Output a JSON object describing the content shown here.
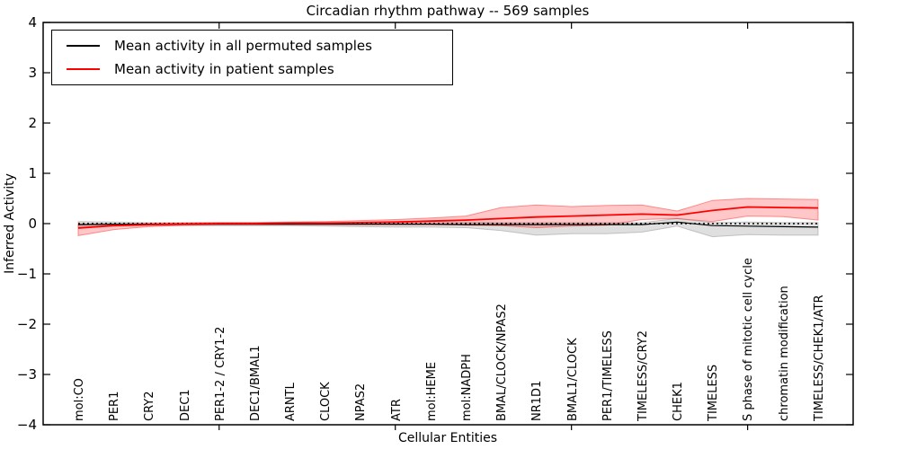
{
  "title": "Circadian rhythm pathway -- 569 samples",
  "legend": {
    "items": [
      {
        "label": "Mean activity in all permuted samples",
        "color": "#000000"
      },
      {
        "label": "Mean activity in patient samples",
        "color": "#ff0000"
      }
    ]
  },
  "chart_data": {
    "type": "line",
    "title": "Circadian rhythm pathway -- 569 samples",
    "xlabel": "Cellular Entities",
    "ylabel": "Inferred Activity",
    "ylim": [
      -4,
      4
    ],
    "y_tick_labels": [
      "4",
      "3",
      "2",
      "1",
      "0",
      "−1",
      "−2",
      "−3",
      "−4"
    ],
    "grid": false,
    "legend_position": "upper left",
    "zero_reference_line": 0,
    "categories": [
      "mol:CO",
      "PER1",
      "CRY2",
      "DEC1",
      "PER1-2 / CRY1-2",
      "DEC1/BMAL1",
      "ARNTL",
      "CLOCK",
      "NPAS2",
      "ATR",
      "mol:HEME",
      "mol:NADPH",
      "BMAL/CLOCK/NPAS2",
      "NR1D1",
      "BMAL1/CLOCK",
      "PER1/TIMELESS",
      "TIMELESS/CRY2",
      "CHEK1",
      "TIMELESS",
      "S phase of mitotic cell cycle",
      "chromatin modification",
      "TIMELESS/CHEK1/ATR"
    ],
    "series": [
      {
        "name": "Mean activity in all permuted samples",
        "color": "#000000",
        "band_fill": "rgba(110,110,110,0.22)",
        "band_edge": "rgba(110,110,110,0.35)",
        "values": [
          -0.02,
          -0.01,
          -0.01,
          -0.01,
          -0.01,
          -0.01,
          -0.01,
          -0.01,
          -0.01,
          -0.01,
          -0.01,
          -0.02,
          -0.02,
          -0.02,
          -0.02,
          -0.02,
          -0.02,
          0.03,
          -0.04,
          -0.05,
          -0.06,
          -0.07
        ],
        "band_upper": [
          0.04,
          0.03,
          0.02,
          0.02,
          0.02,
          0.02,
          0.02,
          0.02,
          0.02,
          0.03,
          0.03,
          0.03,
          0.02,
          0.02,
          0.02,
          0.02,
          0.02,
          0.1,
          0.02,
          0.03,
          0.02,
          0.02
        ],
        "band_lower": [
          -0.07,
          -0.05,
          -0.04,
          -0.04,
          -0.04,
          -0.04,
          -0.04,
          -0.05,
          -0.06,
          -0.07,
          -0.07,
          -0.08,
          -0.14,
          -0.23,
          -0.2,
          -0.2,
          -0.17,
          -0.05,
          -0.26,
          -0.22,
          -0.23,
          -0.23
        ]
      },
      {
        "name": "Mean activity in patient samples",
        "color": "#ff0000",
        "band_fill": "rgba(255,0,0,0.22)",
        "band_edge": "rgba(255,0,0,0.40)",
        "values": [
          -0.09,
          -0.04,
          -0.02,
          -0.01,
          0.0,
          0.0,
          0.01,
          0.01,
          0.02,
          0.03,
          0.05,
          0.07,
          0.1,
          0.13,
          0.15,
          0.17,
          0.19,
          0.17,
          0.26,
          0.33,
          0.32,
          0.31
        ],
        "band_upper": [
          -0.01,
          -0.01,
          0.0,
          0.01,
          0.02,
          0.02,
          0.03,
          0.04,
          0.06,
          0.08,
          0.11,
          0.15,
          0.32,
          0.37,
          0.34,
          0.36,
          0.37,
          0.25,
          0.46,
          0.5,
          0.49,
          0.48
        ],
        "band_lower": [
          -0.24,
          -0.12,
          -0.06,
          -0.03,
          -0.02,
          -0.02,
          -0.02,
          -0.02,
          -0.02,
          -0.02,
          -0.02,
          -0.03,
          -0.04,
          -0.08,
          -0.05,
          -0.03,
          0.08,
          0.1,
          0.04,
          0.15,
          0.14,
          0.07
        ]
      }
    ]
  }
}
